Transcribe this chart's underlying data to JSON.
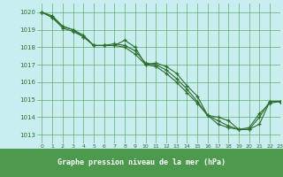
{
  "title": "Graphe pression niveau de la mer (hPa)",
  "background_color": "#c8eef0",
  "grid_color": "#4d994d",
  "line_color": "#2d6e2d",
  "marker_color": "#2d6e2d",
  "title_bg_color": "#4d994d",
  "title_text_color": "#ffffff",
  "xlim": [
    -0.5,
    23
  ],
  "ylim": [
    1012.5,
    1020.5
  ],
  "yticks": [
    1013,
    1014,
    1015,
    1016,
    1017,
    1018,
    1019,
    1020
  ],
  "xticks": [
    0,
    1,
    2,
    3,
    4,
    5,
    6,
    7,
    8,
    9,
    10,
    11,
    12,
    13,
    14,
    15,
    16,
    17,
    18,
    19,
    20,
    21,
    22,
    23
  ],
  "series": [
    [
      1020.0,
      1019.8,
      1019.2,
      1019.0,
      1018.7,
      1018.1,
      1018.1,
      1018.1,
      1018.4,
      1018.0,
      1017.0,
      1017.1,
      1016.9,
      1016.5,
      1015.8,
      1015.2,
      1014.1,
      1014.0,
      1013.8,
      1013.3,
      1013.3,
      1013.6,
      1014.9,
      1014.9
    ],
    [
      1020.0,
      1019.7,
      1019.2,
      1019.0,
      1018.6,
      1018.1,
      1018.1,
      1018.2,
      1018.1,
      1017.8,
      1017.1,
      1017.0,
      1016.7,
      1016.2,
      1015.6,
      1014.9,
      1014.1,
      1013.8,
      1013.5,
      1013.3,
      1013.3,
      1014.0,
      1014.9,
      1014.9
    ],
    [
      1020.0,
      1019.7,
      1019.1,
      1018.9,
      1018.6,
      1018.1,
      1018.1,
      1018.1,
      1018.0,
      1017.6,
      1017.0,
      1016.9,
      1016.5,
      1016.0,
      1015.4,
      1014.8,
      1014.1,
      1013.6,
      1013.4,
      1013.3,
      1013.4,
      1014.2,
      1014.8,
      1014.9
    ]
  ]
}
